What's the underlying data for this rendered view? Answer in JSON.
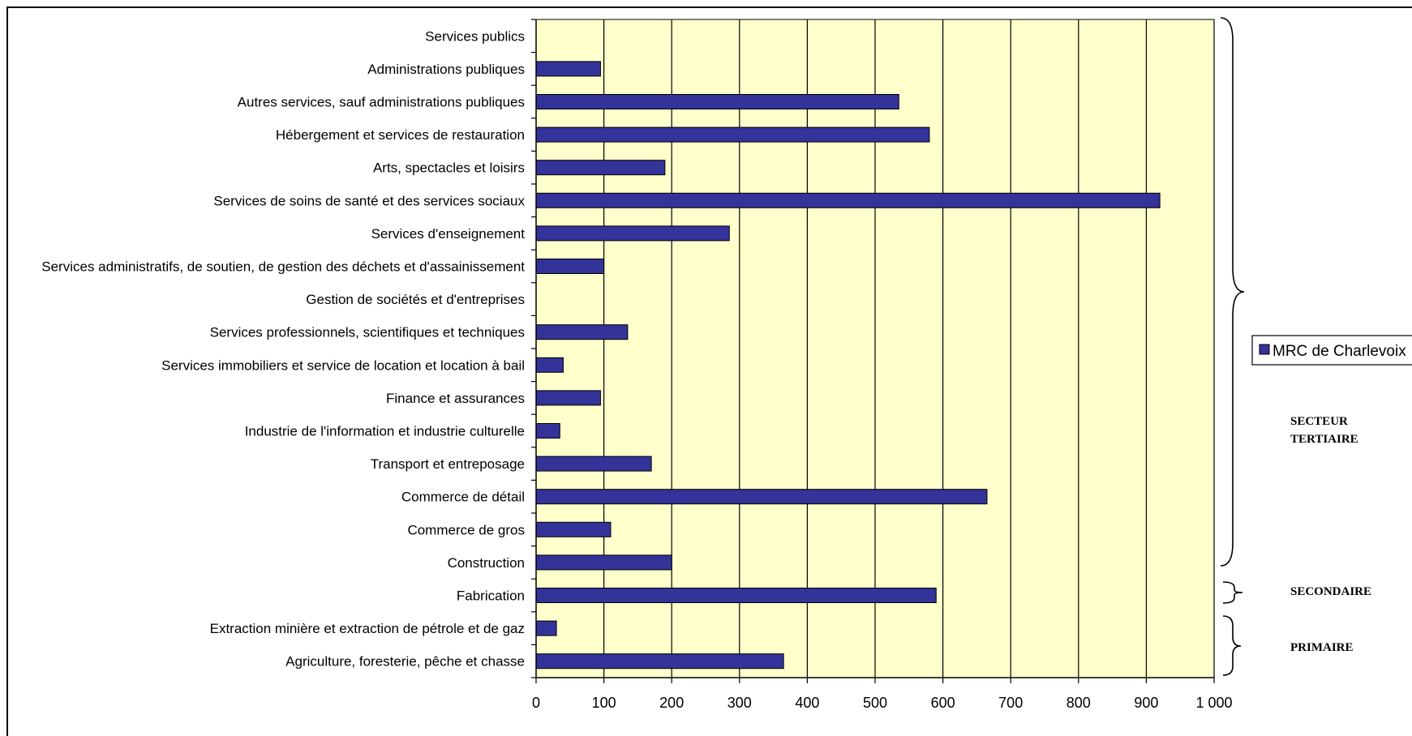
{
  "chart_data": {
    "type": "bar",
    "orientation": "horizontal",
    "categories": [
      "Services publics",
      "Administrations publiques",
      "Autres services, sauf administrations publiques",
      "Hébergement et services de restauration",
      "Arts, spectacles et loisirs",
      "Services de soins de santé et des services sociaux",
      "Services d'enseignement",
      "Services administratifs, de soutien, de gestion des déchets et d'assainissement",
      "Gestion de sociétés et d'entreprises",
      "Services professionnels, scientifiques et techniques",
      "Services immobiliers et service de location et location à bail",
      "Finance et assurances",
      "Industrie de l'information et industrie culturelle",
      "Transport et entreposage",
      "Commerce de détail",
      "Commerce de gros",
      "Construction",
      "Fabrication",
      "Extraction minière et extraction de pétrole et de gaz",
      "Agriculture, foresterie, pêche et chasse"
    ],
    "series": [
      {
        "name": "MRC de Charlevoix",
        "color": "#333399",
        "values": [
          0,
          95,
          535,
          580,
          190,
          920,
          285,
          100,
          0,
          135,
          40,
          95,
          35,
          170,
          665,
          110,
          200,
          590,
          30,
          365
        ]
      }
    ],
    "xlim": [
      0,
      1000
    ],
    "xticks": [
      0,
      100,
      200,
      300,
      400,
      500,
      600,
      700,
      800,
      900,
      1000
    ],
    "xtick_labels": [
      "0",
      "100",
      "200",
      "300",
      "400",
      "500",
      "600",
      "700",
      "800",
      "900",
      "1 000"
    ],
    "grid": "vertical",
    "plot_background": "#ffffcc",
    "legend": {
      "position": "right",
      "label": "MRC de Charlevoix"
    },
    "annotations": {
      "tertiaire": [
        "SECTEUR",
        "TERTIAIRE"
      ],
      "secondaire": "SECONDAIRE",
      "primaire": "PRIMAIRE"
    }
  }
}
